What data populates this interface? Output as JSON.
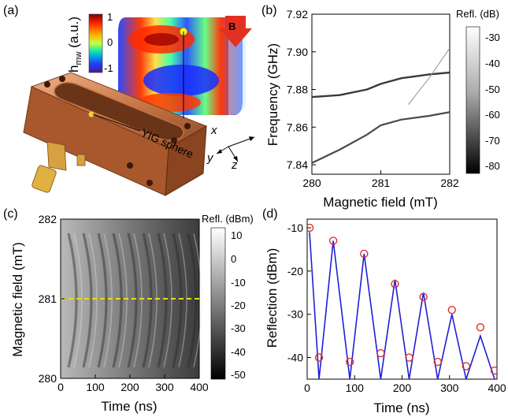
{
  "panels": {
    "a": {
      "label": "(a)",
      "colorbar": {
        "title": "h",
        "title_sub": "mw",
        "title_suffix": " (a.u.)",
        "ticks": [
          "1",
          "0",
          "-1"
        ]
      },
      "field_arrow_label": "B",
      "yig_label": "YIG sphere",
      "axes": {
        "x": "x",
        "y": "y",
        "z": "z"
      }
    },
    "b": {
      "label": "(b)",
      "xlabel": "Magnetic field (mT)",
      "ylabel": "Frequency (GHz)",
      "colorbar_title": "Refl. (dB)",
      "colorbar_ticks": [
        "-30",
        "-40",
        "-50",
        "-60",
        "-70",
        "-80"
      ]
    },
    "c": {
      "label": "(c)",
      "xlabel": "Time (ns)",
      "ylabel": "Magnetic field (mT)",
      "colorbar_title": "Refl. (dBm)",
      "colorbar_ticks": [
        "10",
        "0",
        "-10",
        "-20",
        "-30",
        "-40",
        "-50"
      ]
    },
    "d": {
      "label": "(d)",
      "xlabel": "Time (ns)",
      "ylabel": "Reflection (dBm)"
    }
  },
  "chart_data": [
    {
      "panel": "b",
      "type": "heatmap",
      "xlabel": "Magnetic field (mT)",
      "ylabel": "Frequency (GHz)",
      "xlim": [
        280,
        282
      ],
      "ylim": [
        7.835,
        7.92
      ],
      "xticks": [
        "280",
        "281",
        "282"
      ],
      "yticks": [
        "7.84",
        "7.86",
        "7.88",
        "7.90",
        "7.92"
      ],
      "colorbar": {
        "label": "Refl. (dB)",
        "range": [
          -85,
          -25
        ]
      },
      "series": [
        {
          "x": [
            280.0,
            280.4,
            280.8,
            281.0,
            281.3,
            281.7,
            282.0
          ],
          "y": [
            7.876,
            7.877,
            7.88,
            7.883,
            7.886,
            7.888,
            7.889
          ]
        },
        {
          "x": [
            280.0,
            280.4,
            280.8,
            281.0,
            281.3,
            281.7,
            282.0
          ],
          "y": [
            7.841,
            7.848,
            7.856,
            7.861,
            7.864,
            7.866,
            7.868
          ]
        },
        {
          "x": [
            281.4,
            281.7,
            282.0
          ],
          "y": [
            7.872,
            7.886,
            7.902
          ]
        }
      ]
    },
    {
      "panel": "c",
      "type": "heatmap",
      "xlabel": "Time (ns)",
      "ylabel": "Magnetic field (mT)",
      "xlim": [
        0,
        400
      ],
      "ylim": [
        280,
        282
      ],
      "xticks": [
        "0",
        "100",
        "200",
        "300",
        "400"
      ],
      "yticks": [
        "280",
        "281",
        "282"
      ],
      "colorbar": {
        "label": "Refl. (dBm)",
        "range": [
          -52,
          12
        ]
      },
      "marker_line": {
        "y": 281,
        "color": "#e8e000",
        "style": "dashed"
      }
    },
    {
      "panel": "d",
      "type": "scatter",
      "xlabel": "Time (ns)",
      "ylabel": "Reflection (dBm)",
      "xlim": [
        0,
        400
      ],
      "ylim": [
        -45,
        -8
      ],
      "xticks": [
        "0",
        "100",
        "200",
        "300",
        "400"
      ],
      "yticks": [
        "-10",
        "-20",
        "-30",
        "-40"
      ],
      "series": [
        {
          "style": "line",
          "color": "#1f1fd6",
          "x": [
            5,
            25,
            55,
            90,
            120,
            155,
            185,
            215,
            245,
            275,
            305,
            335,
            365,
            395
          ],
          "y": [
            -11,
            -45,
            -13,
            -45,
            -16,
            -45,
            -22,
            -45,
            -25,
            -45,
            -30,
            -45,
            -35,
            -45
          ]
        },
        {
          "style": "markers",
          "color": "#e03030",
          "x": [
            5,
            25,
            55,
            90,
            120,
            155,
            185,
            215,
            245,
            275,
            305,
            335,
            365,
            395
          ],
          "y": [
            -10,
            -40,
            -13,
            -41,
            -16,
            -39,
            -23,
            -40,
            -26,
            -41,
            -29,
            -42,
            -33,
            -43
          ]
        }
      ]
    }
  ]
}
